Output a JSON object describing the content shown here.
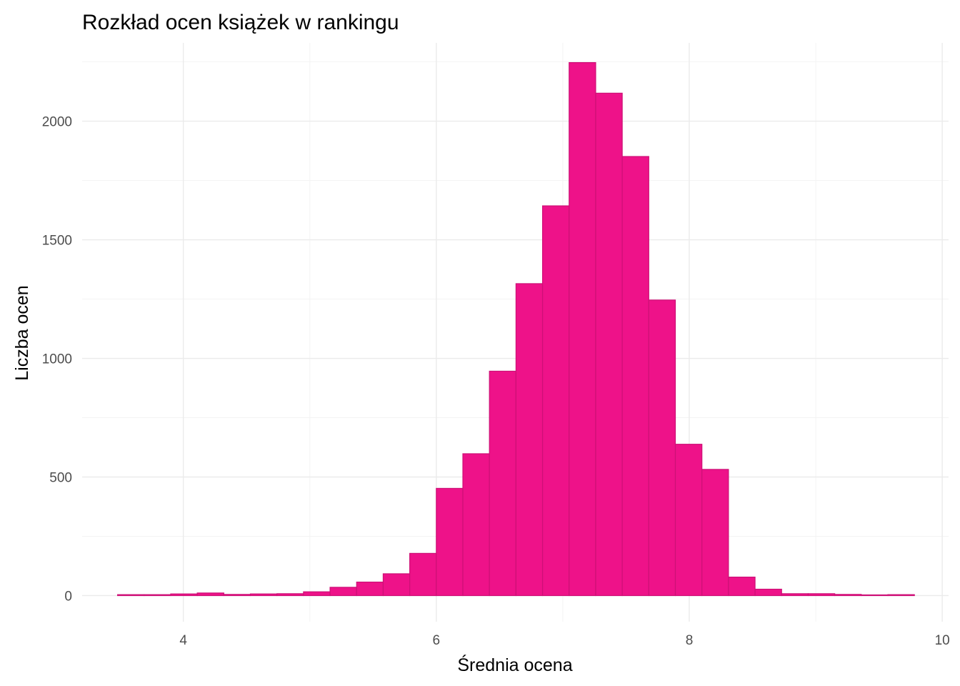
{
  "chart_data": {
    "type": "bar",
    "subtype": "histogram",
    "title": "Rozkład ocen książek w rankingu",
    "xlabel": "Średnia ocena",
    "ylabel": "Liczba ocen",
    "xlim": [
      3.2,
      10.05
    ],
    "ylim": [
      -110,
      2330
    ],
    "x_ticks": [
      4,
      6,
      8,
      10
    ],
    "y_ticks": [
      0,
      500,
      1000,
      1500,
      2000
    ],
    "x_minor_ticks": [
      5,
      7,
      9
    ],
    "y_minor_ticks": [
      250,
      750,
      1250,
      1750,
      2250
    ],
    "bin_width": 0.21,
    "bin_start": 3.48,
    "values": [
      4,
      4,
      7,
      11,
      5,
      7,
      8,
      16,
      35,
      57,
      92,
      178,
      452,
      598,
      946,
      1315,
      1643,
      2247,
      2118,
      1851,
      1246,
      638,
      532,
      78,
      27,
      8,
      8,
      5,
      3,
      4
    ],
    "bar_fill": "#EE1289",
    "bar_stroke": "#CD1076",
    "grid": true,
    "legend": "none"
  }
}
